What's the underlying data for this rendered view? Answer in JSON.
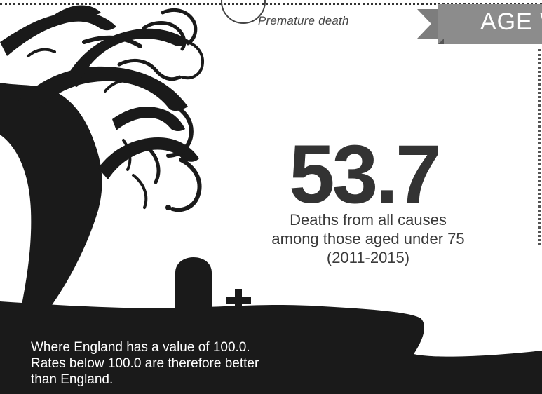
{
  "header": {
    "section_label": "Premature death",
    "ribbon_text": "AGE W"
  },
  "stat": {
    "value": "53.7",
    "caption_lines": [
      "Deaths from all causes",
      "among those aged under 75",
      "(2011-2015)"
    ]
  },
  "footnote": {
    "lines": [
      "Where England has a value of 100.0.",
      "Rates below 100.0 are therefore better",
      "than England."
    ]
  },
  "colors": {
    "ink": "#1a1a1a",
    "ribbon": "#8a8a8a",
    "number": "#333333"
  },
  "icons": [
    "tree-illustration",
    "tombstone-icon",
    "cross-icon"
  ]
}
